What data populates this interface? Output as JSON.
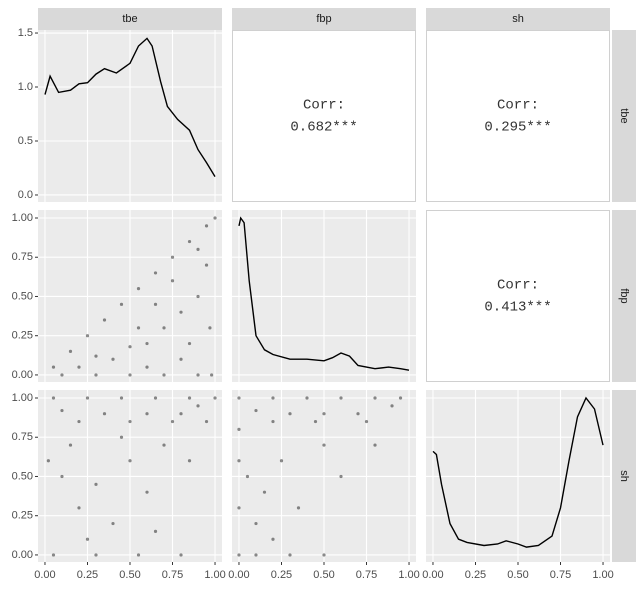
{
  "chart_data": {
    "type": "pairs",
    "variables": [
      "tbe",
      "fbp",
      "sh"
    ],
    "xlim": [
      -0.041,
      1.041
    ],
    "xticks": [
      {
        "value": 0,
        "label": "0.00"
      },
      {
        "value": 0.25,
        "label": "0.25"
      },
      {
        "value": 0.5,
        "label": "0.50"
      },
      {
        "value": 0.75,
        "label": "0.75"
      },
      {
        "value": 1,
        "label": "1.00"
      }
    ],
    "row_axes": [
      {
        "ylim": [
          -0.065,
          1.528
        ],
        "yticks": [
          {
            "value": 0,
            "label": "0.0"
          },
          {
            "value": 0.5,
            "label": "0.5"
          },
          {
            "value": 1,
            "label": "1.0"
          },
          {
            "value": 1.5,
            "label": "1.5"
          }
        ]
      },
      {
        "ylim": [
          -0.045,
          1.051
        ],
        "yticks": [
          {
            "value": 0,
            "label": "0.00"
          },
          {
            "value": 0.25,
            "label": "0.25"
          },
          {
            "value": 0.5,
            "label": "0.50"
          },
          {
            "value": 0.75,
            "label": "0.75"
          },
          {
            "value": 1,
            "label": "1.00"
          }
        ]
      },
      {
        "ylim": [
          -0.045,
          1.051
        ],
        "yticks": [
          {
            "value": 0,
            "label": "0.00"
          },
          {
            "value": 0.25,
            "label": "0.25"
          },
          {
            "value": 0.5,
            "label": "0.50"
          },
          {
            "value": 0.75,
            "label": "0.75"
          },
          {
            "value": 1,
            "label": "1.00"
          }
        ]
      }
    ],
    "panels": [
      [
        {
          "type": "density",
          "x": [
            0,
            0.03,
            0.08,
            0.15,
            0.2,
            0.25,
            0.3,
            0.35,
            0.42,
            0.5,
            0.55,
            0.6,
            0.63,
            0.68,
            0.72,
            0.78,
            0.85,
            0.9,
            0.95,
            1.0
          ],
          "values": [
            0.93,
            1.1,
            0.95,
            0.97,
            1.03,
            1.04,
            1.12,
            1.17,
            1.13,
            1.22,
            1.38,
            1.45,
            1.38,
            1.05,
            0.82,
            0.7,
            0.6,
            0.42,
            0.3,
            0.17
          ]
        },
        {
          "type": "corr",
          "title": "Corr:",
          "text": "0.682***"
        },
        {
          "type": "corr",
          "title": "Corr:",
          "text": "0.295***"
        }
      ],
      [
        {
          "type": "scatter",
          "x": [
            0.05,
            0.15,
            0.25,
            0.35,
            0.45,
            0.55,
            0.65,
            0.75,
            0.85,
            0.95,
            1.0,
            0.1,
            0.3,
            0.5,
            0.7,
            0.9,
            0.98,
            0.4,
            0.6,
            0.7,
            0.8,
            0.9,
            0.95,
            0.85,
            0.55,
            0.65,
            0.75,
            0.9,
            0.3,
            0.5,
            0.2,
            0.6,
            0.8,
            0.97
          ],
          "values": [
            0.05,
            0.15,
            0.25,
            0.35,
            0.45,
            0.55,
            0.65,
            0.75,
            0.85,
            0.95,
            1.0,
            0,
            0,
            0,
            0,
            0,
            0,
            0.1,
            0.2,
            0.3,
            0.4,
            0.5,
            0.7,
            0.2,
            0.3,
            0.45,
            0.6,
            0.8,
            0.12,
            0.18,
            0.05,
            0.05,
            0.1,
            0.3
          ]
        },
        {
          "type": "density",
          "x": [
            0,
            0.01,
            0.03,
            0.06,
            0.1,
            0.15,
            0.2,
            0.3,
            0.4,
            0.5,
            0.55,
            0.6,
            0.65,
            0.7,
            0.8,
            0.88,
            0.95,
            1.0
          ],
          "values": [
            0.95,
            1.0,
            0.97,
            0.6,
            0.25,
            0.16,
            0.13,
            0.1,
            0.1,
            0.09,
            0.11,
            0.14,
            0.12,
            0.06,
            0.04,
            0.05,
            0.04,
            0.03
          ]
        },
        {
          "type": "corr",
          "title": "Corr:",
          "text": "0.413***"
        }
      ],
      [
        {
          "type": "scatter",
          "x": [
            0.05,
            0.25,
            0.45,
            0.65,
            0.85,
            1,
            0.1,
            0.35,
            0.6,
            0.8,
            0.2,
            0.5,
            0.75,
            0.95,
            0.05,
            0.3,
            0.55,
            0.8,
            0.1,
            0.3,
            0.5,
            0.2,
            0.4,
            0.6,
            0.7,
            0.15,
            0.45,
            0.85,
            0.25,
            0.65,
            0.9,
            0.02
          ],
          "values": [
            1,
            1,
            1,
            1,
            1,
            1,
            0.92,
            0.9,
            0.9,
            0.9,
            0.85,
            0.85,
            0.85,
            0.85,
            0,
            0,
            0,
            0,
            0.5,
            0.45,
            0.6,
            0.3,
            0.2,
            0.4,
            0.7,
            0.7,
            0.75,
            0.6,
            0.1,
            0.15,
            0.95,
            0.6
          ]
        },
        {
          "type": "scatter",
          "x": [
            0,
            0.2,
            0.4,
            0.6,
            0.8,
            0.95,
            0.1,
            0.3,
            0.5,
            0.7,
            0.9,
            0.2,
            0.45,
            0.75,
            0,
            0.1,
            0.3,
            0.5,
            0,
            0,
            0,
            0.05,
            0.15,
            0.25,
            0.35,
            0.5,
            0.6,
            0.1,
            0.2,
            0.8
          ],
          "values": [
            1,
            1,
            1,
            1,
            1,
            1,
            0.92,
            0.9,
            0.9,
            0.9,
            0.95,
            0.85,
            0.85,
            0.85,
            0,
            0,
            0,
            0,
            0.3,
            0.6,
            0.8,
            0.5,
            0.4,
            0.6,
            0.3,
            0.7,
            0.5,
            0.2,
            0.1,
            0.7
          ]
        },
        {
          "type": "density",
          "x": [
            0,
            0.02,
            0.05,
            0.1,
            0.15,
            0.2,
            0.3,
            0.38,
            0.43,
            0.5,
            0.55,
            0.62,
            0.7,
            0.75,
            0.8,
            0.85,
            0.9,
            0.95,
            1.0
          ],
          "values": [
            0.66,
            0.64,
            0.45,
            0.2,
            0.1,
            0.08,
            0.06,
            0.07,
            0.09,
            0.07,
            0.05,
            0.06,
            0.12,
            0.3,
            0.6,
            0.88,
            1.0,
            0.93,
            0.7
          ]
        }
      ]
    ]
  }
}
